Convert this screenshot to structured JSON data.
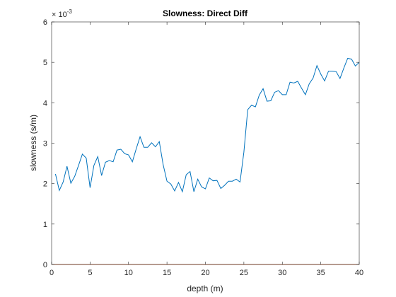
{
  "chart_data": {
    "type": "line",
    "title": "Slowness: Direct Diff",
    "xlabel": "depth (m)",
    "ylabel": "slowness (s/m)",
    "xlim": [
      0,
      40
    ],
    "ylim": [
      0,
      6
    ],
    "y_exponent_base": "× 10",
    "y_exponent_power": "-3",
    "xticks": [
      0,
      5,
      10,
      15,
      20,
      25,
      30,
      35,
      40
    ],
    "yticks": [
      0,
      1,
      2,
      3,
      4,
      5,
      6
    ],
    "grid": false,
    "box": true,
    "series": [
      {
        "color": "#0072BD",
        "x": [
          0.5,
          1.0,
          1.5,
          2.0,
          2.5,
          3.0,
          3.5,
          4.0,
          4.5,
          5.0,
          5.5,
          6.0,
          6.5,
          7.0,
          7.5,
          8.0,
          8.5,
          9.0,
          9.5,
          10.0,
          10.5,
          11.0,
          11.5,
          12.0,
          12.5,
          13.0,
          13.5,
          14.0,
          14.5,
          15.0,
          15.5,
          16.0,
          16.5,
          17.0,
          17.5,
          18.0,
          18.5,
          19.0,
          19.5,
          20.0,
          20.5,
          21.0,
          21.5,
          22.0,
          22.5,
          23.0,
          23.5,
          24.0,
          24.5,
          25.0,
          25.5,
          26.0,
          26.5,
          27.0,
          27.5,
          28.0,
          28.5,
          29.0,
          29.5,
          30.0,
          30.5,
          31.0,
          31.5,
          32.0,
          32.5,
          33.0,
          33.5,
          34.0,
          34.5,
          35.0,
          35.5,
          36.0,
          36.5,
          37.0,
          37.5,
          38.0,
          38.5,
          39.0,
          39.5,
          40.0
        ],
        "y": [
          2.24,
          1.83,
          2.04,
          2.43,
          2.01,
          2.18,
          2.45,
          2.73,
          2.63,
          1.9,
          2.45,
          2.67,
          2.2,
          2.53,
          2.57,
          2.54,
          2.83,
          2.85,
          2.74,
          2.71,
          2.54,
          2.86,
          3.16,
          2.9,
          2.9,
          3.01,
          2.91,
          3.04,
          2.47,
          2.06,
          1.99,
          1.82,
          2.03,
          1.8,
          2.22,
          2.3,
          1.8,
          2.11,
          1.92,
          1.87,
          2.14,
          2.07,
          2.08,
          1.88,
          1.96,
          2.06,
          2.06,
          2.11,
          2.04,
          2.78,
          3.83,
          3.94,
          3.9,
          4.19,
          4.35,
          4.04,
          4.05,
          4.26,
          4.3,
          4.2,
          4.2,
          4.51,
          4.49,
          4.53,
          4.36,
          4.2,
          4.47,
          4.61,
          4.92,
          4.71,
          4.54,
          4.78,
          4.78,
          4.77,
          4.6,
          4.86,
          5.1,
          5.08,
          4.91,
          5.0
        ]
      },
      {
        "color": "#D95319",
        "x": [
          0,
          40
        ],
        "y": [
          0,
          0
        ]
      }
    ]
  }
}
